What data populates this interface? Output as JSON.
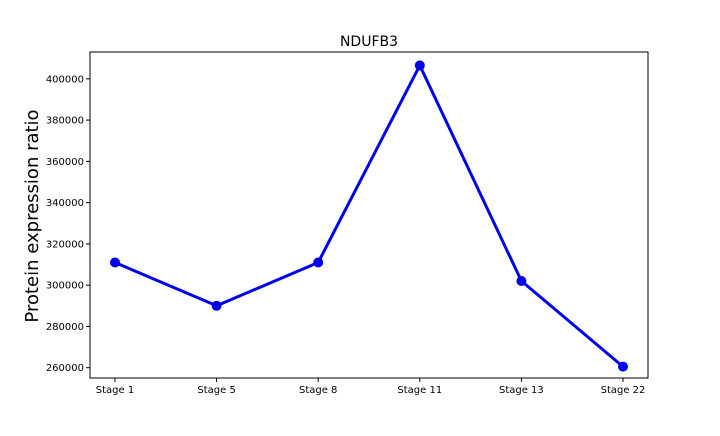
{
  "chart_data": {
    "type": "line",
    "title": "NDUFB3",
    "xlabel": "",
    "ylabel": "Protein expression ratio",
    "categories": [
      "Stage 1",
      "Stage 5",
      "Stage 8",
      "Stage 11",
      "Stage 13",
      "Stage 22"
    ],
    "series": [
      {
        "values": [
          311000,
          290000,
          311000,
          406500,
          302000,
          260500
        ],
        "color": "#0000ee"
      }
    ],
    "ylim": [
      255000,
      413000
    ],
    "yticks": [
      260000,
      280000,
      300000,
      320000,
      340000,
      360000,
      380000,
      400000
    ],
    "ytick_labels": [
      "260000",
      "280000",
      "300000",
      "320000",
      "340000",
      "360000",
      "380000",
      "400000"
    ],
    "grid": false,
    "legend": "none"
  }
}
